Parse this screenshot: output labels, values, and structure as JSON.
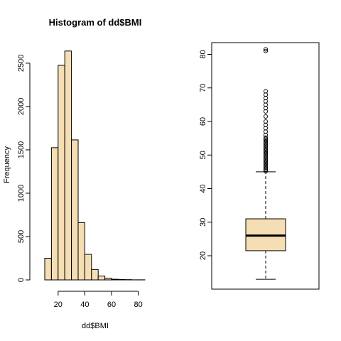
{
  "colors": {
    "fill": "#F5DEB3",
    "stroke": "#000000",
    "background": "#FFFFFF"
  },
  "chart_data": [
    {
      "type": "bar",
      "title": "Histogram of dd$BMI",
      "xlabel": "dd$BMI",
      "ylabel": "Frequency",
      "bin_edges": [
        10,
        15,
        20,
        25,
        30,
        35,
        40,
        45,
        50,
        55,
        60,
        65,
        70,
        75,
        80,
        85
      ],
      "values": [
        250,
        1525,
        2475,
        2640,
        1615,
        660,
        295,
        120,
        45,
        20,
        8,
        5,
        3,
        1,
        1
      ],
      "xlim": [
        10,
        85
      ],
      "ylim": [
        0,
        2700
      ],
      "x_ticks": [
        "20",
        "40",
        "60",
        "80"
      ],
      "x_tick_values": [
        20,
        40,
        60,
        80
      ],
      "y_ticks": [
        "0",
        "500",
        "1000",
        "1500",
        "2000",
        "2500"
      ],
      "y_tick_values": [
        0,
        500,
        1000,
        1500,
        2000,
        2500
      ],
      "grid": false
    },
    {
      "type": "boxplot",
      "min_whisker": 13,
      "q1": 21.5,
      "median": 26,
      "q3": 31,
      "max_whisker": 45,
      "outliers": [
        45.2,
        45.6,
        46,
        46.4,
        46.8,
        47.2,
        47.6,
        48,
        48.4,
        48.8,
        49.2,
        49.6,
        50,
        50.4,
        50.8,
        51.2,
        51.6,
        52,
        52.4,
        52.8,
        53.2,
        53.6,
        54,
        54.4,
        54.8,
        55.2,
        56,
        57,
        58,
        59,
        60,
        61.5,
        63,
        64,
        65,
        66,
        67,
        68,
        69,
        81,
        81.5
      ],
      "ylim": [
        10,
        83
      ],
      "y_ticks": [
        "20",
        "30",
        "40",
        "50",
        "60",
        "70",
        "80"
      ],
      "y_tick_values": [
        20,
        30,
        40,
        50,
        60,
        70,
        80
      ],
      "grid": false
    }
  ]
}
